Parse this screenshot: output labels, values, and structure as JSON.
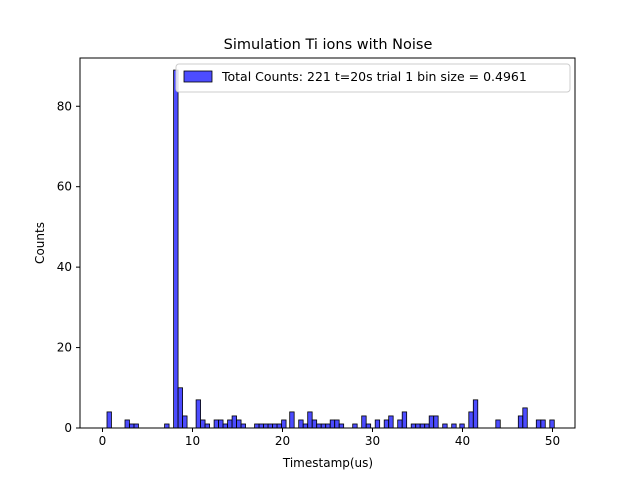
{
  "chart_data": {
    "type": "bar",
    "title": "Simulation Ti ions with Noise",
    "xlabel": "Timestamp(us)",
    "ylabel": "Counts",
    "xlim": [
      -2.5,
      52.5
    ],
    "ylim": [
      0,
      92
    ],
    "xticks": [
      0,
      10,
      20,
      30,
      40,
      50
    ],
    "yticks": [
      0,
      20,
      40,
      60,
      80
    ],
    "bin_width": 0.4961,
    "legend": {
      "label": "Total Counts: 221 t=20s trial 1 bin size = 0.4961",
      "placement": "top-right"
    },
    "bar_color": "#0000ff",
    "bar_edge_color": "#000000",
    "series": [
      {
        "bins": [
          [
            0.0,
            0
          ],
          [
            0.5,
            4
          ],
          [
            2.5,
            2
          ],
          [
            3.0,
            1
          ],
          [
            3.5,
            1
          ],
          [
            6.9,
            1
          ],
          [
            7.9,
            89
          ],
          [
            8.4,
            10
          ],
          [
            8.9,
            3
          ],
          [
            10.4,
            7
          ],
          [
            10.9,
            2
          ],
          [
            11.4,
            1
          ],
          [
            12.4,
            2
          ],
          [
            12.9,
            2
          ],
          [
            13.4,
            1
          ],
          [
            13.9,
            2
          ],
          [
            14.4,
            3
          ],
          [
            14.9,
            2
          ],
          [
            15.4,
            1
          ],
          [
            16.9,
            1
          ],
          [
            17.4,
            1
          ],
          [
            17.9,
            1
          ],
          [
            18.4,
            1
          ],
          [
            18.9,
            1
          ],
          [
            19.4,
            1
          ],
          [
            19.9,
            2
          ],
          [
            20.8,
            4
          ],
          [
            21.8,
            2
          ],
          [
            22.3,
            1
          ],
          [
            22.8,
            4
          ],
          [
            23.3,
            2
          ],
          [
            23.8,
            1
          ],
          [
            24.3,
            1
          ],
          [
            24.8,
            1
          ],
          [
            25.3,
            2
          ],
          [
            25.8,
            2
          ],
          [
            26.3,
            1
          ],
          [
            27.8,
            1
          ],
          [
            28.8,
            3
          ],
          [
            29.3,
            1
          ],
          [
            30.3,
            2
          ],
          [
            31.3,
            2
          ],
          [
            31.8,
            3
          ],
          [
            32.8,
            2
          ],
          [
            33.3,
            4
          ],
          [
            34.3,
            1
          ],
          [
            34.8,
            1
          ],
          [
            35.3,
            1
          ],
          [
            35.8,
            1
          ],
          [
            36.3,
            3
          ],
          [
            36.8,
            3
          ],
          [
            37.8,
            1
          ],
          [
            38.8,
            1
          ],
          [
            39.7,
            1
          ],
          [
            40.7,
            4
          ],
          [
            41.2,
            7
          ],
          [
            43.7,
            2
          ],
          [
            46.2,
            3
          ],
          [
            46.7,
            5
          ],
          [
            48.2,
            2
          ],
          [
            48.7,
            2
          ],
          [
            49.7,
            2
          ]
        ]
      }
    ]
  }
}
